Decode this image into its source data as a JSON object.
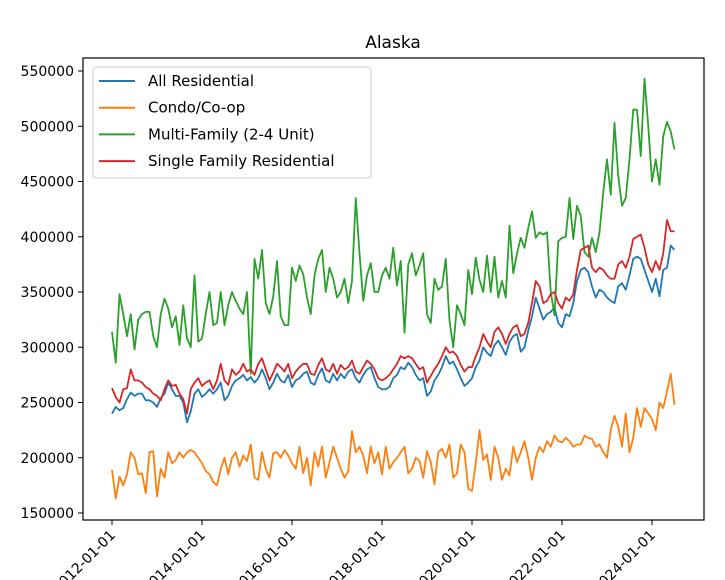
{
  "chart_data": {
    "type": "line",
    "title": "Alaska",
    "xlabel": "",
    "ylabel": "",
    "x_start": "2012-01-01",
    "x_frequency": "monthly",
    "x_ticks": [
      "2012-01-01",
      "2014-01-01",
      "2016-01-01",
      "2018-01-01",
      "2020-01-01",
      "2022-01-01",
      "2024-01-01"
    ],
    "y_ticks": [
      150000,
      200000,
      250000,
      300000,
      350000,
      400000,
      450000,
      500000,
      550000
    ],
    "ylim": [
      143000,
      560000
    ],
    "grid": false,
    "legend_position": "top-left",
    "series": [
      {
        "name": "All Residential",
        "color": "#1f77b4",
        "values": [
          240000,
          246000,
          243000,
          245000,
          253000,
          259000,
          256000,
          258000,
          258000,
          252000,
          252000,
          250000,
          246000,
          254000,
          258000,
          268000,
          262000,
          256000,
          256000,
          250000,
          232000,
          242000,
          258000,
          262000,
          255000,
          258000,
          262000,
          258000,
          262000,
          268000,
          252000,
          256000,
          265000,
          270000,
          272000,
          275000,
          270000,
          273000,
          268000,
          272000,
          280000,
          272000,
          262000,
          268000,
          276000,
          270000,
          268000,
          275000,
          264000,
          270000,
          272000,
          276000,
          278000,
          268000,
          266000,
          275000,
          281000,
          270000,
          268000,
          276000,
          270000,
          276000,
          272000,
          278000,
          280000,
          272000,
          268000,
          275000,
          280000,
          282000,
          272000,
          264000,
          262000,
          262000,
          264000,
          272000,
          275000,
          282000,
          280000,
          286000,
          282000,
          275000,
          270000,
          272000,
          256000,
          260000,
          270000,
          275000,
          282000,
          292000,
          285000,
          287000,
          280000,
          272000,
          265000,
          268000,
          272000,
          282000,
          288000,
          300000,
          295000,
          292000,
          302000,
          306000,
          300000,
          293000,
          305000,
          310000,
          312000,
          296000,
          300000,
          315000,
          328000,
          345000,
          335000,
          325000,
          330000,
          332000,
          336000,
          322000,
          318000,
          330000,
          328000,
          340000,
          360000,
          370000,
          372000,
          368000,
          355000,
          345000,
          352000,
          350000,
          345000,
          342000,
          340000,
          355000,
          358000,
          352000,
          365000,
          380000,
          382000,
          380000,
          370000,
          360000,
          350000,
          362000,
          346000,
          370000,
          372000,
          392000,
          388000
        ]
      },
      {
        "name": "Condo/Co-op",
        "color": "#ff7f0e",
        "values": [
          189000,
          163000,
          183000,
          175000,
          185000,
          205000,
          200000,
          185000,
          186000,
          168000,
          205000,
          206000,
          165000,
          190000,
          182000,
          205000,
          195000,
          198000,
          205000,
          200000,
          205000,
          207000,
          205000,
          200000,
          195000,
          188000,
          185000,
          178000,
          175000,
          190000,
          200000,
          185000,
          200000,
          205000,
          192000,
          202000,
          197000,
          212000,
          182000,
          180000,
          205000,
          190000,
          182000,
          204000,
          205000,
          200000,
          207000,
          202000,
          195000,
          190000,
          210000,
          186000,
          200000,
          175000,
          205000,
          192000,
          210000,
          182000,
          196000,
          210000,
          200000,
          190000,
          182000,
          188000,
          224000,
          205000,
          210000,
          202000,
          186000,
          210000,
          195000,
          205000,
          185000,
          210000,
          190000,
          196000,
          200000,
          205000,
          210000,
          186000,
          190000,
          200000,
          197000,
          182000,
          206000,
          196000,
          176000,
          205000,
          208000,
          200000,
          212000,
          182000,
          186000,
          212000,
          205000,
          172000,
          170000,
          195000,
          225000,
          198000,
          203000,
          180000,
          210000,
          200000,
          180000,
          190000,
          184000,
          210000,
          196000,
          205000,
          215000,
          200000,
          180000,
          200000,
          210000,
          205000,
          215000,
          210000,
          220000,
          215000,
          214000,
          218000,
          215000,
          210000,
          212000,
          212000,
          220000,
          218000,
          217000,
          210000,
          212000,
          205000,
          200000,
          225000,
          238000,
          228000,
          210000,
          240000,
          205000,
          218000,
          245000,
          228000,
          245000,
          240000,
          235000,
          225000,
          250000,
          245000,
          260000,
          276000,
          248000
        ]
      },
      {
        "name": "Multi-Family (2-4 Unit)",
        "color": "#2ca02c",
        "values": [
          314000,
          286000,
          348000,
          330000,
          310000,
          330000,
          298000,
          325000,
          330000,
          332000,
          332000,
          310000,
          300000,
          330000,
          344000,
          335000,
          318000,
          328000,
          302000,
          338000,
          308000,
          300000,
          365000,
          305000,
          308000,
          330000,
          350000,
          320000,
          322000,
          350000,
          320000,
          338000,
          350000,
          342000,
          335000,
          330000,
          350000,
          276000,
          380000,
          362000,
          388000,
          340000,
          330000,
          346000,
          378000,
          328000,
          320000,
          320000,
          372000,
          360000,
          374000,
          366000,
          345000,
          330000,
          365000,
          380000,
          388000,
          350000,
          372000,
          362000,
          345000,
          350000,
          362000,
          340000,
          360000,
          435000,
          385000,
          342000,
          365000,
          376000,
          350000,
          350000,
          365000,
          372000,
          362000,
          390000,
          356000,
          378000,
          313000,
          375000,
          385000,
          365000,
          374000,
          385000,
          330000,
          322000,
          362000,
          352000,
          355000,
          380000,
          324000,
          300000,
          338000,
          330000,
          320000,
          370000,
          348000,
          381000,
          361000,
          350000,
          383000,
          350000,
          382000,
          345000,
          360000,
          345000,
          410000,
          367000,
          385000,
          399000,
          390000,
          408000,
          423000,
          399000,
          404000,
          402000,
          404000,
          350000,
          329000,
          396000,
          399000,
          400000,
          435000,
          398000,
          428000,
          419000,
          386000,
          382000,
          399000,
          386000,
          404000,
          440000,
          470000,
          438000,
          503000,
          455000,
          428000,
          435000,
          470000,
          515000,
          515000,
          473000,
          543000,
          500000,
          450000,
          470000,
          447000,
          491000,
          504000,
          495000,
          479000
        ]
      },
      {
        "name": "Single Family Residential",
        "color": "#d62728",
        "values": [
          263000,
          255000,
          250000,
          262000,
          263000,
          280000,
          270000,
          270000,
          268000,
          264000,
          262000,
          258000,
          256000,
          252000,
          262000,
          270000,
          265000,
          266000,
          258000,
          253000,
          240000,
          262000,
          268000,
          272000,
          265000,
          268000,
          270000,
          262000,
          270000,
          285000,
          270000,
          266000,
          280000,
          275000,
          278000,
          285000,
          278000,
          280000,
          275000,
          285000,
          290000,
          280000,
          270000,
          277000,
          285000,
          282000,
          278000,
          285000,
          272000,
          278000,
          282000,
          285000,
          285000,
          276000,
          275000,
          284000,
          290000,
          280000,
          278000,
          285000,
          276000,
          284000,
          280000,
          282000,
          288000,
          278000,
          276000,
          282000,
          288000,
          285000,
          280000,
          272000,
          270000,
          272000,
          275000,
          280000,
          285000,
          292000,
          290000,
          292000,
          290000,
          285000,
          280000,
          282000,
          268000,
          274000,
          280000,
          285000,
          292000,
          300000,
          295000,
          296000,
          292000,
          284000,
          278000,
          282000,
          282000,
          292000,
          300000,
          312000,
          305000,
          300000,
          314000,
          318000,
          312000,
          303000,
          312000,
          318000,
          320000,
          310000,
          312000,
          322000,
          340000,
          360000,
          355000,
          340000,
          342000,
          348000,
          350000,
          340000,
          335000,
          345000,
          342000,
          348000,
          370000,
          388000,
          390000,
          392000,
          372000,
          368000,
          372000,
          370000,
          365000,
          362000,
          362000,
          375000,
          378000,
          372000,
          382000,
          398000,
          400000,
          402000,
          390000,
          375000,
          368000,
          378000,
          370000,
          385000,
          415000,
          405000,
          405000
        ]
      }
    ]
  }
}
